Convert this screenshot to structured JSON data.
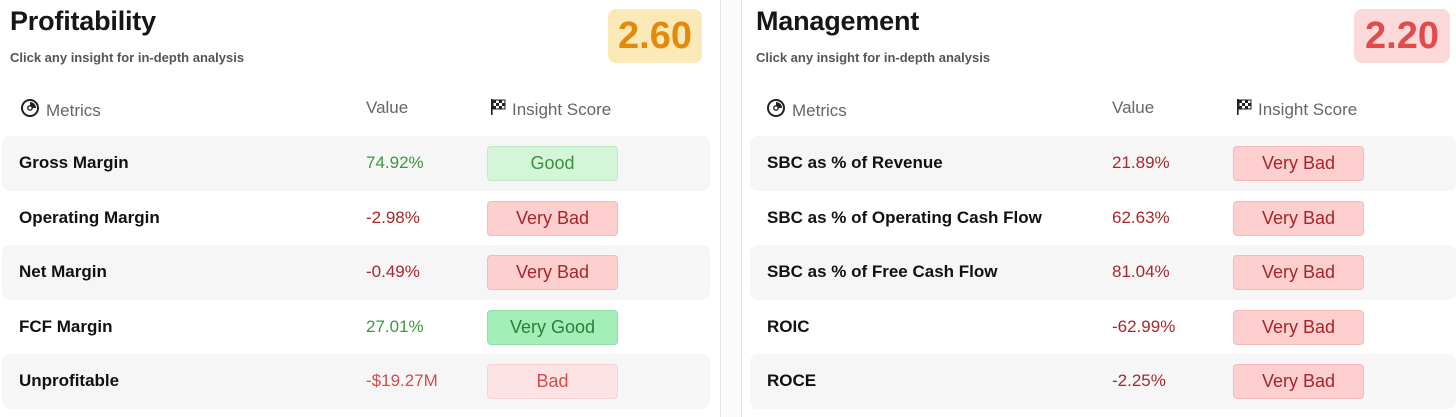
{
  "profitability": {
    "title": "Profitability",
    "subtitle": "Click any insight for in-depth analysis",
    "score": "2.60",
    "headers": {
      "metrics": "Metrics",
      "value": "Value",
      "insight": "Insight Score"
    },
    "rows": [
      {
        "metric": "Gross Margin",
        "value": "74.92%",
        "insight": "Good"
      },
      {
        "metric": "Operating Margin",
        "value": "-2.98%",
        "insight": "Very Bad"
      },
      {
        "metric": "Net Margin",
        "value": "-0.49%",
        "insight": "Very Bad"
      },
      {
        "metric": "FCF Margin",
        "value": "27.01%",
        "insight": "Very Good"
      },
      {
        "metric": "Unprofitable",
        "value": "-$19.27M",
        "insight": "Bad"
      }
    ]
  },
  "management": {
    "title": "Management",
    "subtitle": "Click any insight for in-depth analysis",
    "score": "2.20",
    "headers": {
      "metrics": "Metrics",
      "value": "Value",
      "insight": "Insight Score"
    },
    "rows": [
      {
        "metric": "SBC as % of Revenue",
        "value": "21.89%",
        "insight": "Very Bad"
      },
      {
        "metric": "SBC as % of Operating Cash Flow",
        "value": "62.63%",
        "insight": "Very Bad"
      },
      {
        "metric": "SBC as % of Free Cash Flow",
        "value": "81.04%",
        "insight": "Very Bad"
      },
      {
        "metric": "ROIC",
        "value": "-62.99%",
        "insight": "Very Bad"
      },
      {
        "metric": "ROCE",
        "value": "-2.25%",
        "insight": "Very Bad"
      }
    ]
  },
  "colors": {
    "score_orange": "#e48a0a",
    "score_red": "#e14b4b",
    "good_green": "#3a9a3a",
    "bad_red": "#a8272c"
  },
  "icons": {
    "metrics": "gauge-icon",
    "insight": "checkered-flag-icon"
  }
}
